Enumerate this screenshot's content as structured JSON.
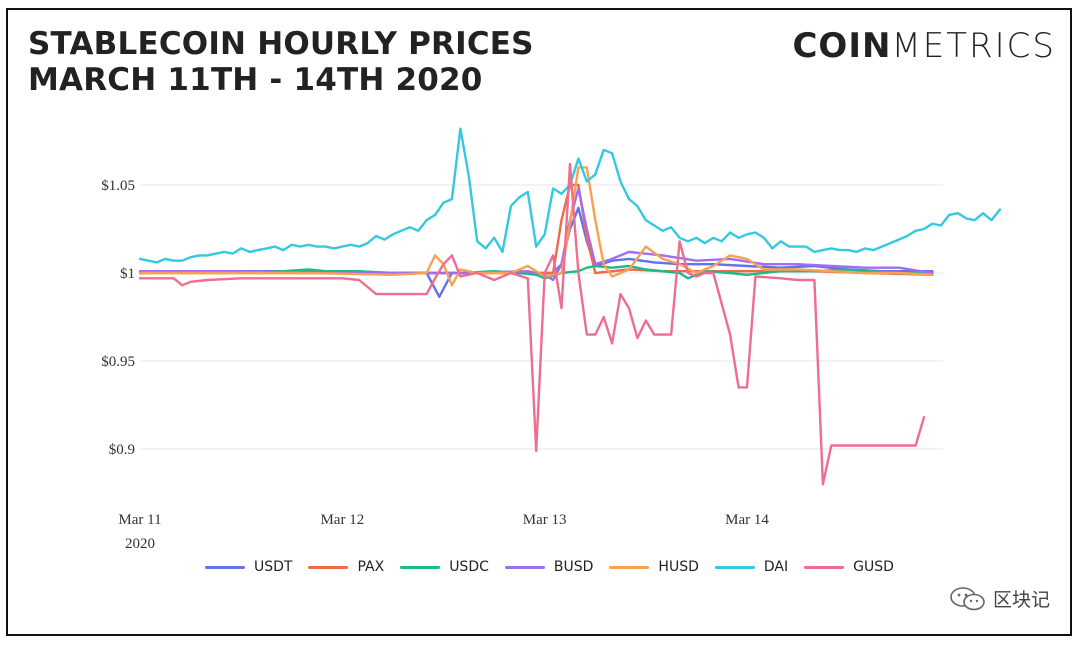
{
  "header": {
    "title_line1": "STABLECOIN HOURLY PRICES",
    "title_line2": "MARCH 11TH - 14TH 2020",
    "logo_bold": "COIN",
    "logo_light": "METRICS"
  },
  "watermark": {
    "text": "区块记",
    "icon": "wechat-icon"
  },
  "chart_data": {
    "type": "line",
    "title": "STABLECOIN HOURLY PRICES MARCH 11TH - 14TH 2020",
    "x_unit": "hours since Mar 11 2020 00:00",
    "xlim": [
      0,
      94
    ],
    "x_ticks": [
      {
        "x": 0,
        "label": "Mar 11",
        "sublabel": "2020"
      },
      {
        "x": 24,
        "label": "Mar 12",
        "sublabel": ""
      },
      {
        "x": 48,
        "label": "Mar 13",
        "sublabel": ""
      },
      {
        "x": 72,
        "label": "Mar 14",
        "sublabel": ""
      }
    ],
    "ylim": [
      0.875,
      1.085
    ],
    "y_ticks": [
      {
        "value": 1.05,
        "label": "$1.05"
      },
      {
        "value": 1.0,
        "label": "$1"
      },
      {
        "value": 0.95,
        "label": "$0.95"
      },
      {
        "value": 0.9,
        "label": "$0.9"
      }
    ],
    "grid": "horizontal",
    "legend_position": "bottom",
    "series": [
      {
        "name": "USDT",
        "color": "#6272e8",
        "points": [
          [
            0,
            1.0
          ],
          [
            10,
            1.001
          ],
          [
            20,
            1.001
          ],
          [
            28,
            1.0
          ],
          [
            34,
            1.0
          ],
          [
            35.5,
            0.9865
          ],
          [
            37,
            1.0
          ],
          [
            41,
            1.0
          ],
          [
            45,
            1.001
          ],
          [
            47,
            1.0
          ],
          [
            49,
            1.0
          ],
          [
            50,
            1.005
          ],
          [
            51,
            1.025
          ],
          [
            52,
            1.037
          ],
          [
            53,
            1.018
          ],
          [
            54,
            1.004
          ],
          [
            56,
            1.007
          ],
          [
            58,
            1.008
          ],
          [
            61,
            1.006
          ],
          [
            64,
            1.005
          ],
          [
            68,
            1.005
          ],
          [
            72,
            1.004
          ],
          [
            76,
            1.003
          ],
          [
            80,
            1.004
          ],
          [
            84,
            1.002
          ],
          [
            88,
            1.001
          ],
          [
            92,
            1.001
          ],
          [
            94,
            1.001
          ]
        ]
      },
      {
        "name": "PAX",
        "color": "#ef6a4c",
        "points": [
          [
            0,
            1.0
          ],
          [
            20,
            1.0
          ],
          [
            35,
            1.0
          ],
          [
            44,
            1.0
          ],
          [
            47,
            1.0
          ],
          [
            49,
            1.0
          ],
          [
            50,
            1.03
          ],
          [
            51,
            1.05
          ],
          [
            52,
            1.05
          ],
          [
            53,
            1.02
          ],
          [
            54,
            1.0
          ],
          [
            58,
            1.002
          ],
          [
            62,
            1.001
          ],
          [
            68,
            1.001
          ],
          [
            74,
            1.001
          ],
          [
            80,
            1.001
          ],
          [
            86,
            1.0
          ],
          [
            94,
            0.999
          ]
        ]
      },
      {
        "name": "USDC",
        "color": "#1fba86",
        "points": [
          [
            0,
            1.0
          ],
          [
            8,
            1.001
          ],
          [
            14,
            1.0
          ],
          [
            20,
            1.002
          ],
          [
            22,
            1.001
          ],
          [
            26,
            1.001
          ],
          [
            30,
            1.0
          ],
          [
            34,
            1.0
          ],
          [
            38,
            1.0
          ],
          [
            42,
            1.001
          ],
          [
            45,
            1.0
          ],
          [
            47,
            0.999
          ],
          [
            48,
            0.997
          ],
          [
            50,
            1.0
          ],
          [
            52,
            1.001
          ],
          [
            53,
            1.003
          ],
          [
            54,
            1.004
          ],
          [
            56,
            1.003
          ],
          [
            58,
            1.004
          ],
          [
            60,
            1.002
          ],
          [
            62,
            1.001
          ],
          [
            64,
            1.0
          ],
          [
            65,
            0.997
          ],
          [
            67,
            1.001
          ],
          [
            70,
            1.0
          ],
          [
            72,
            0.999
          ],
          [
            76,
            1.001
          ],
          [
            80,
            1.001
          ],
          [
            84,
            1.002
          ],
          [
            86,
            1.001
          ],
          [
            90,
            1.0
          ],
          [
            94,
            1.0
          ]
        ]
      },
      {
        "name": "BUSD",
        "color": "#a46cf0",
        "points": [
          [
            0,
            1.001
          ],
          [
            10,
            1.001
          ],
          [
            20,
            1.0
          ],
          [
            30,
            1.0
          ],
          [
            40,
            1.0
          ],
          [
            46,
            1.001
          ],
          [
            48,
            0.999
          ],
          [
            49,
            0.996
          ],
          [
            50,
            1.005
          ],
          [
            51,
            1.03
          ],
          [
            52,
            1.048
          ],
          [
            53,
            1.025
          ],
          [
            54,
            1.005
          ],
          [
            56,
            1.008
          ],
          [
            58,
            1.012
          ],
          [
            62,
            1.01
          ],
          [
            66,
            1.007
          ],
          [
            70,
            1.008
          ],
          [
            74,
            1.005
          ],
          [
            78,
            1.005
          ],
          [
            82,
            1.004
          ],
          [
            86,
            1.003
          ],
          [
            90,
            1.003
          ],
          [
            94,
            1.0
          ]
        ]
      },
      {
        "name": "HUSD",
        "color": "#f7a251",
        "points": [
          [
            0,
            1.0
          ],
          [
            10,
            1.0
          ],
          [
            20,
            1.0
          ],
          [
            30,
            0.999
          ],
          [
            34,
            1.0
          ],
          [
            35,
            1.01
          ],
          [
            36,
            1.005
          ],
          [
            37,
            0.993
          ],
          [
            38,
            1.002
          ],
          [
            40,
            1.0
          ],
          [
            44,
            1.0
          ],
          [
            46,
            1.004
          ],
          [
            48,
            0.998
          ],
          [
            50,
            1.0
          ],
          [
            51,
            1.028
          ],
          [
            52,
            1.06
          ],
          [
            53,
            1.06
          ],
          [
            54,
            1.03
          ],
          [
            55,
            1.005
          ],
          [
            56,
            0.998
          ],
          [
            58,
            1.002
          ],
          [
            60,
            1.015
          ],
          [
            62,
            1.008
          ],
          [
            64,
            1.005
          ],
          [
            66,
            1.0
          ],
          [
            68,
            1.004
          ],
          [
            70,
            1.01
          ],
          [
            72,
            1.008
          ],
          [
            74,
            1.002
          ],
          [
            78,
            1.002
          ],
          [
            82,
            1.001
          ],
          [
            86,
            1.0
          ],
          [
            90,
            1.0
          ],
          [
            94,
            0.999
          ]
        ]
      },
      {
        "name": "DAI",
        "color": "#35c9e0",
        "points": [
          [
            0,
            1.008
          ],
          [
            1,
            1.007
          ],
          [
            2,
            1.006
          ],
          [
            3,
            1.008
          ],
          [
            4,
            1.007
          ],
          [
            5,
            1.007
          ],
          [
            6,
            1.009
          ],
          [
            7,
            1.01
          ],
          [
            8,
            1.01
          ],
          [
            9,
            1.011
          ],
          [
            10,
            1.012
          ],
          [
            11,
            1.011
          ],
          [
            12,
            1.014
          ],
          [
            13,
            1.012
          ],
          [
            14,
            1.013
          ],
          [
            15,
            1.014
          ],
          [
            16,
            1.015
          ],
          [
            17,
            1.013
          ],
          [
            18,
            1.016
          ],
          [
            19,
            1.015
          ],
          [
            20,
            1.016
          ],
          [
            21,
            1.015
          ],
          [
            22,
            1.015
          ],
          [
            23,
            1.014
          ],
          [
            24,
            1.015
          ],
          [
            25,
            1.016
          ],
          [
            26,
            1.015
          ],
          [
            27,
            1.017
          ],
          [
            28,
            1.021
          ],
          [
            29,
            1.019
          ],
          [
            30,
            1.022
          ],
          [
            31,
            1.024
          ],
          [
            32,
            1.026
          ],
          [
            33,
            1.024
          ],
          [
            34,
            1.03
          ],
          [
            35,
            1.033
          ],
          [
            36,
            1.04
          ],
          [
            37,
            1.042
          ],
          [
            38,
            1.082
          ],
          [
            39,
            1.055
          ],
          [
            40,
            1.018
          ],
          [
            41,
            1.014
          ],
          [
            42,
            1.02
          ],
          [
            43,
            1.012
          ],
          [
            44,
            1.038
          ],
          [
            45,
            1.043
          ],
          [
            46,
            1.046
          ],
          [
            47,
            1.015
          ],
          [
            48,
            1.022
          ],
          [
            49,
            1.048
          ],
          [
            50,
            1.045
          ],
          [
            51,
            1.05
          ],
          [
            52,
            1.065
          ],
          [
            53,
            1.052
          ],
          [
            54,
            1.056
          ],
          [
            55,
            1.07
          ],
          [
            56,
            1.068
          ],
          [
            57,
            1.052
          ],
          [
            58,
            1.042
          ],
          [
            59,
            1.038
          ],
          [
            60,
            1.03
          ],
          [
            61,
            1.027
          ],
          [
            62,
            1.024
          ],
          [
            63,
            1.026
          ],
          [
            64,
            1.02
          ],
          [
            65,
            1.018
          ],
          [
            66,
            1.02
          ],
          [
            67,
            1.017
          ],
          [
            68,
            1.02
          ],
          [
            69,
            1.018
          ],
          [
            70,
            1.023
          ],
          [
            71,
            1.02
          ],
          [
            72,
            1.022
          ],
          [
            73,
            1.023
          ],
          [
            74,
            1.02
          ],
          [
            75,
            1.014
          ],
          [
            76,
            1.018
          ],
          [
            77,
            1.015
          ],
          [
            78,
            1.015
          ],
          [
            79,
            1.015
          ],
          [
            80,
            1.012
          ],
          [
            81,
            1.013
          ],
          [
            82,
            1.014
          ],
          [
            83,
            1.013
          ],
          [
            84,
            1.013
          ],
          [
            85,
            1.012
          ],
          [
            86,
            1.014
          ],
          [
            87,
            1.013
          ],
          [
            88,
            1.015
          ],
          [
            89,
            1.017
          ],
          [
            90,
            1.019
          ],
          [
            91,
            1.021
          ],
          [
            92,
            1.024
          ],
          [
            93,
            1.025
          ],
          [
            94,
            1.028
          ],
          [
            95,
            1.027
          ],
          [
            96,
            1.033
          ],
          [
            97,
            1.034
          ],
          [
            98,
            1.031
          ],
          [
            99,
            1.03
          ],
          [
            100,
            1.034
          ],
          [
            101,
            1.03
          ],
          [
            102,
            1.036
          ]
        ]
      },
      {
        "name": "GUSD",
        "color": "#ee6d91",
        "points": [
          [
            0,
            0.997
          ],
          [
            4,
            0.997
          ],
          [
            5,
            0.993
          ],
          [
            6,
            0.995
          ],
          [
            8,
            0.996
          ],
          [
            12,
            0.997
          ],
          [
            20,
            0.997
          ],
          [
            24,
            0.997
          ],
          [
            26,
            0.996
          ],
          [
            28,
            0.988
          ],
          [
            34,
            0.988
          ],
          [
            35,
            0.997
          ],
          [
            36,
            1.005
          ],
          [
            37,
            1.01
          ],
          [
            38,
            0.998
          ],
          [
            40,
            1.0
          ],
          [
            42,
            0.996
          ],
          [
            44,
            1.0
          ],
          [
            46,
            0.997
          ],
          [
            47,
            0.899
          ],
          [
            48,
            1.0
          ],
          [
            49,
            1.01
          ],
          [
            50,
            0.98
          ],
          [
            51,
            1.062
          ],
          [
            52,
            1.0
          ],
          [
            53,
            0.965
          ],
          [
            54,
            0.965
          ],
          [
            55,
            0.975
          ],
          [
            56,
            0.96
          ],
          [
            57,
            0.988
          ],
          [
            58,
            0.98
          ],
          [
            59,
            0.963
          ],
          [
            60,
            0.973
          ],
          [
            61,
            0.965
          ],
          [
            62,
            0.965
          ],
          [
            63,
            0.965
          ],
          [
            64,
            1.018
          ],
          [
            65,
            1.0
          ],
          [
            66,
            0.998
          ],
          [
            67,
            1.0
          ],
          [
            68,
            1.0
          ],
          [
            70,
            0.965
          ],
          [
            71,
            0.935
          ],
          [
            72,
            0.935
          ],
          [
            73,
            0.998
          ],
          [
            76,
            0.997
          ],
          [
            78,
            0.996
          ],
          [
            80,
            0.996
          ],
          [
            81,
            0.88
          ],
          [
            82,
            0.902
          ],
          [
            84,
            0.902
          ],
          [
            86,
            0.902
          ],
          [
            88,
            0.902
          ],
          [
            90,
            0.902
          ],
          [
            92,
            0.902
          ],
          [
            93,
            0.918
          ]
        ]
      }
    ]
  }
}
